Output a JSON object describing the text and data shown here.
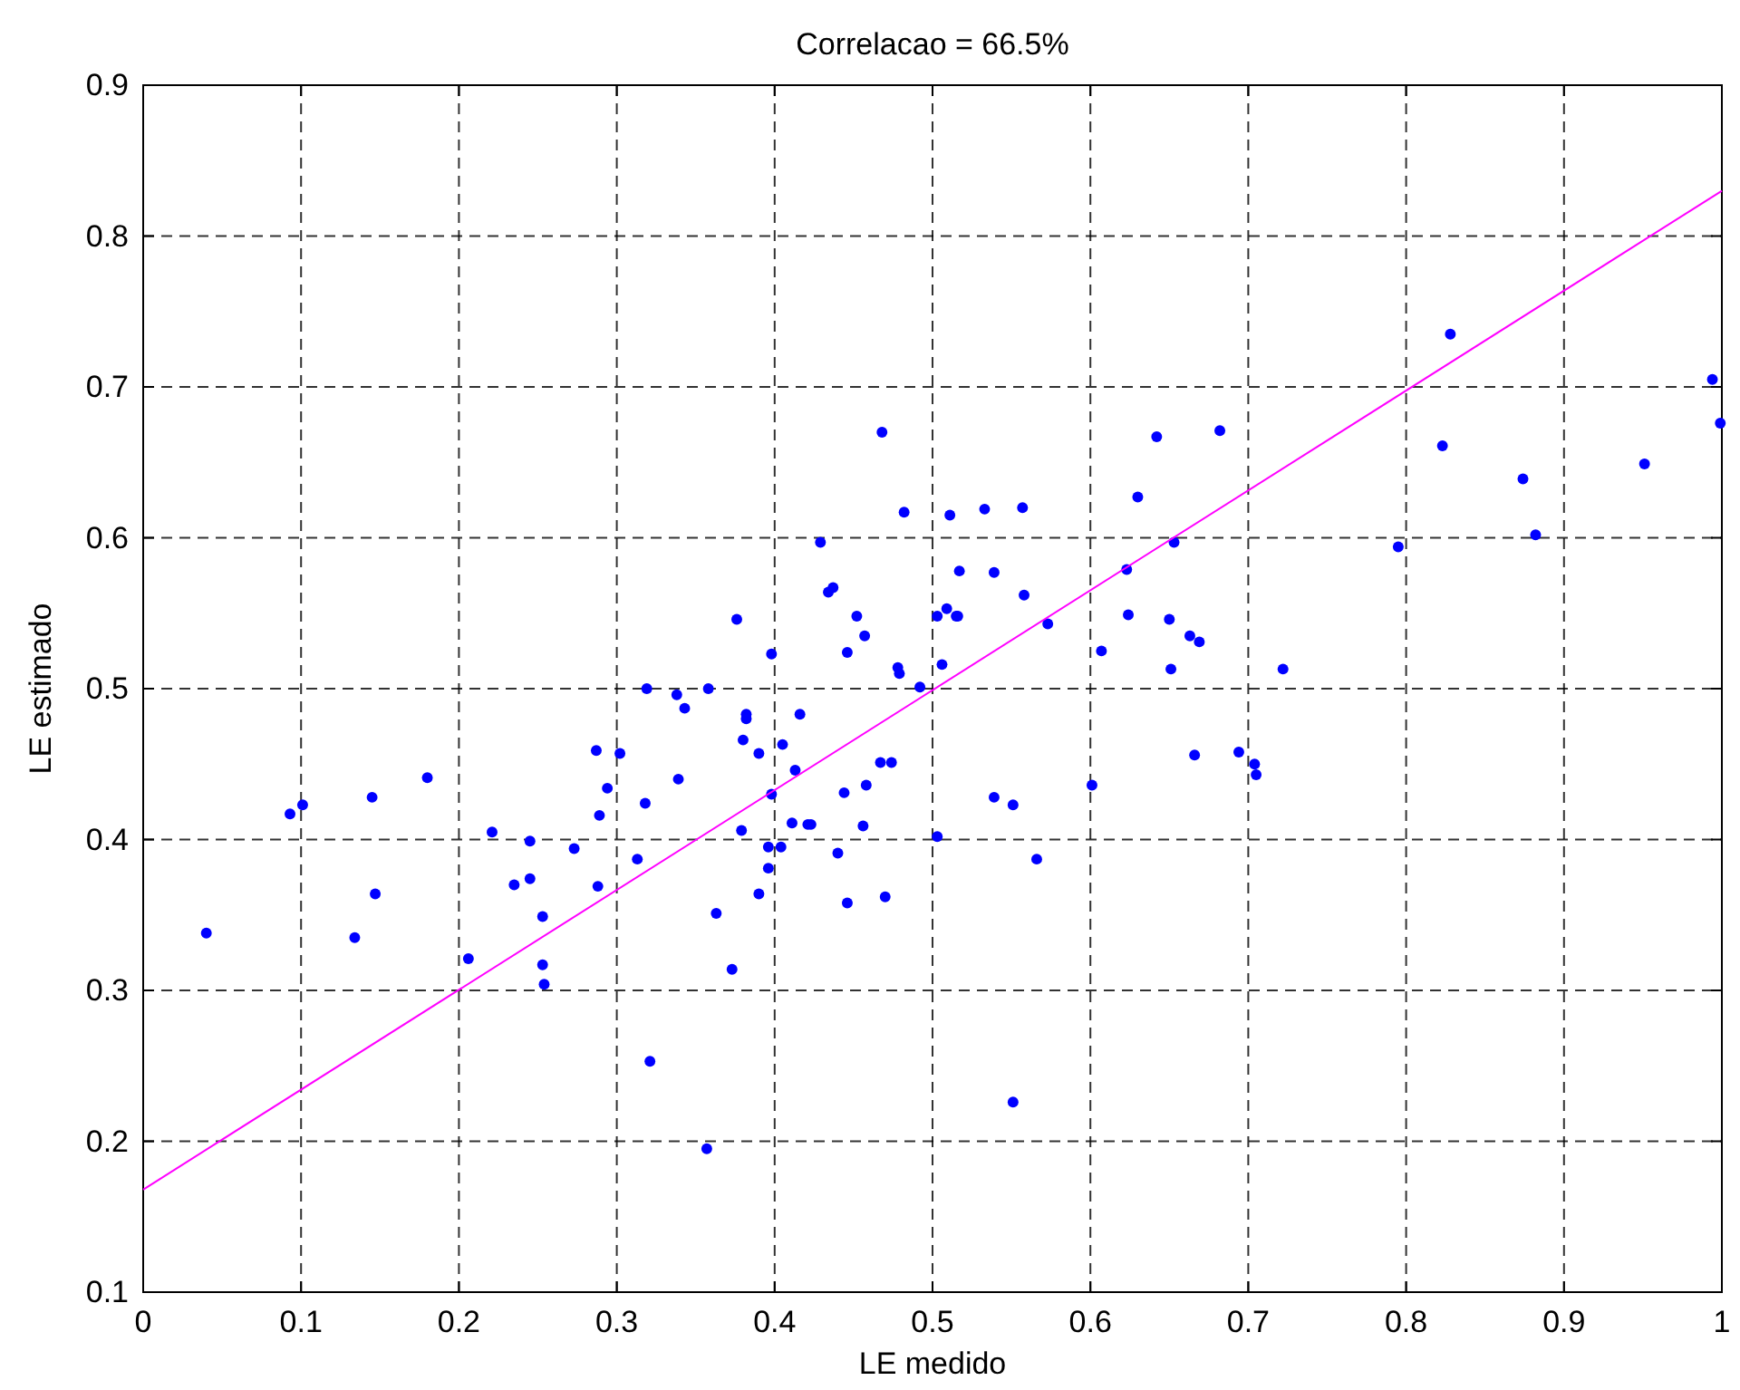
{
  "chart_data": {
    "type": "scatter",
    "title": "Correlacao = 66.5%",
    "xlabel": "LE medido",
    "ylabel": "LE estimado",
    "xlim": [
      0,
      1
    ],
    "ylim": [
      0.1,
      0.9
    ],
    "xticks": [
      0,
      0.1,
      0.2,
      0.3,
      0.4,
      0.5,
      0.6,
      0.7,
      0.8,
      0.9,
      1
    ],
    "yticks": [
      0.1,
      0.2,
      0.3,
      0.4,
      0.5,
      0.6,
      0.7,
      0.8,
      0.9
    ],
    "grid": true,
    "series": [
      {
        "color": "#0000ff",
        "marker": "circle",
        "x": [
          0.04,
          0.093,
          0.101,
          0.145,
          0.18,
          0.147,
          0.134,
          0.221,
          0.245,
          0.235,
          0.245,
          0.273,
          0.206,
          0.253,
          0.253,
          0.254,
          0.287,
          0.302,
          0.294,
          0.289,
          0.318,
          0.288,
          0.313,
          0.319,
          0.321,
          0.338,
          0.343,
          0.358,
          0.382,
          0.382,
          0.416,
          0.38,
          0.39,
          0.405,
          0.413,
          0.339,
          0.398,
          0.444,
          0.458,
          0.467,
          0.474,
          0.539,
          0.551,
          0.379,
          0.411,
          0.421,
          0.423,
          0.456,
          0.503,
          0.396,
          0.404,
          0.44,
          0.396,
          0.39,
          0.446,
          0.47,
          0.363,
          0.373,
          0.357,
          0.551,
          0.468,
          0.482,
          0.429,
          0.434,
          0.437,
          0.376,
          0.398,
          0.452,
          0.457,
          0.446,
          0.478,
          0.479,
          0.492,
          0.503,
          0.509,
          0.515,
          0.516,
          0.517,
          0.506,
          0.511,
          0.533,
          0.557,
          0.539,
          0.558,
          0.642,
          0.682,
          0.63,
          0.573,
          0.653,
          0.623,
          0.624,
          0.65,
          0.663,
          0.669,
          0.607,
          0.651,
          0.722,
          0.666,
          0.694,
          0.704,
          0.705,
          0.601,
          0.566,
          0.828,
          0.823,
          0.874,
          0.882,
          0.795,
          0.951,
          0.994,
          0.999
        ],
        "values": [
          0.338,
          0.417,
          0.423,
          0.428,
          0.441,
          0.364,
          0.335,
          0.405,
          0.399,
          0.37,
          0.374,
          0.394,
          0.321,
          0.349,
          0.317,
          0.304,
          0.459,
          0.457,
          0.434,
          0.416,
          0.424,
          0.369,
          0.387,
          0.5,
          0.253,
          0.496,
          0.487,
          0.5,
          0.483,
          0.48,
          0.483,
          0.466,
          0.457,
          0.463,
          0.446,
          0.44,
          0.43,
          0.431,
          0.436,
          0.451,
          0.451,
          0.428,
          0.423,
          0.406,
          0.411,
          0.41,
          0.41,
          0.409,
          0.402,
          0.395,
          0.395,
          0.391,
          0.381,
          0.364,
          0.358,
          0.362,
          0.351,
          0.314,
          0.195,
          0.226,
          0.67,
          0.617,
          0.597,
          0.564,
          0.567,
          0.546,
          0.523,
          0.548,
          0.535,
          0.524,
          0.514,
          0.51,
          0.501,
          0.548,
          0.553,
          0.548,
          0.548,
          0.578,
          0.516,
          0.615,
          0.619,
          0.62,
          0.577,
          0.562,
          0.667,
          0.671,
          0.627,
          0.543,
          0.597,
          0.579,
          0.549,
          0.546,
          0.535,
          0.531,
          0.525,
          0.513,
          0.513,
          0.456,
          0.458,
          0.45,
          0.443,
          0.436,
          0.387,
          0.735,
          0.661,
          0.639,
          0.602,
          0.594,
          0.649,
          0.705,
          0.676
        ]
      },
      {
        "type": "line",
        "color": "#ff00ff",
        "line_style": "solid",
        "x": [
          0,
          1
        ],
        "values": [
          0.168,
          0.83
        ]
      }
    ]
  }
}
